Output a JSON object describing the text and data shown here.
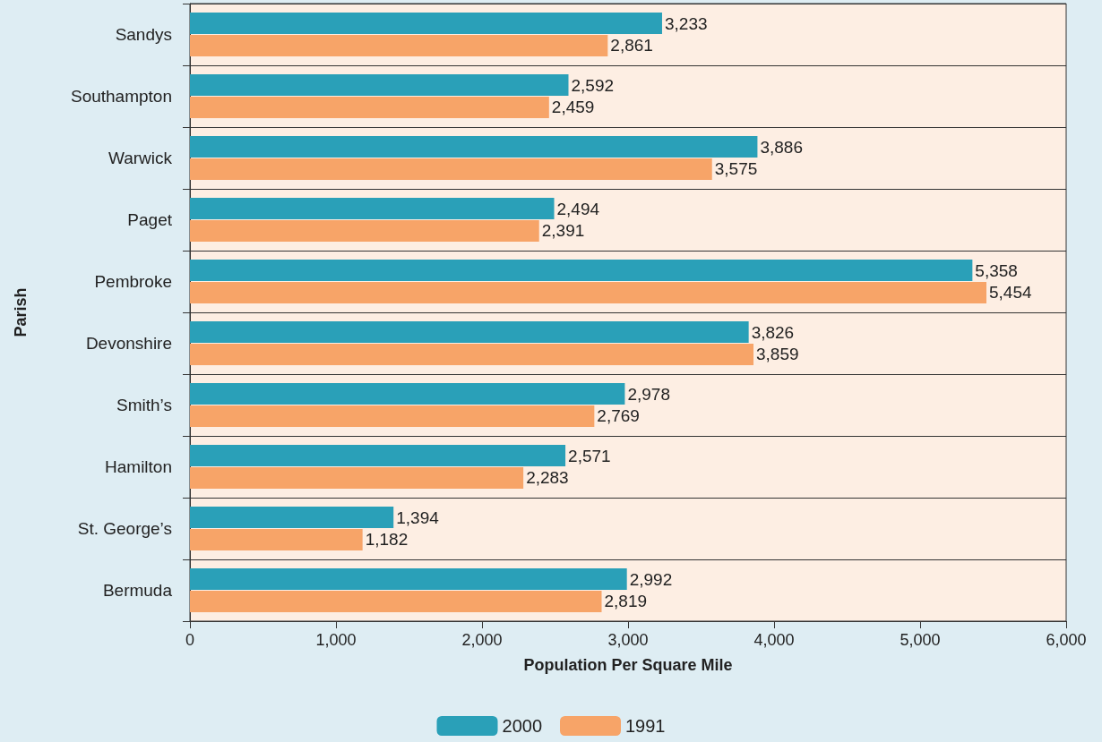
{
  "chart_data": {
    "type": "bar",
    "orientation": "horizontal",
    "xlabel": "Population Per Square Mile",
    "ylabel": "Parish",
    "categories": [
      "Sandys",
      "Southampton",
      "Warwick",
      "Paget",
      "Pembroke",
      "Devonshire",
      "Smith’s",
      "Hamilton",
      "St. George’s",
      "Bermuda"
    ],
    "series": [
      {
        "name": "2000",
        "color": "#2aa0b8",
        "values": [
          3233,
          2592,
          3886,
          2494,
          5358,
          3826,
          2978,
          2571,
          1394,
          2992
        ],
        "value_labels": [
          "3,233",
          "2,592",
          "3,886",
          "2,494",
          "5,358",
          "3,826",
          "2,978",
          "2,571",
          "1,394",
          "2,992"
        ]
      },
      {
        "name": "1991",
        "color": "#f7a468",
        "values": [
          2861,
          2459,
          3575,
          2391,
          5454,
          3859,
          2769,
          2283,
          1182,
          2819
        ],
        "value_labels": [
          "2,861",
          "2,459",
          "3,575",
          "2,391",
          "5,454",
          "3,859",
          "2,769",
          "2,283",
          "1,182",
          "2,819"
        ]
      }
    ],
    "xlim": [
      0,
      6000
    ],
    "xticks": [
      0,
      {
        "value": 1000,
        "label": "1,000"
      },
      {
        "value": 2000,
        "label": "2,000"
      },
      {
        "value": 3000,
        "label": "3,000"
      },
      {
        "value": 4000,
        "label": "4,000"
      },
      {
        "value": 5000,
        "label": "5,000"
      },
      {
        "value": 6000,
        "label": "6,000"
      }
    ],
    "grid": "y",
    "legend": "bottom"
  }
}
